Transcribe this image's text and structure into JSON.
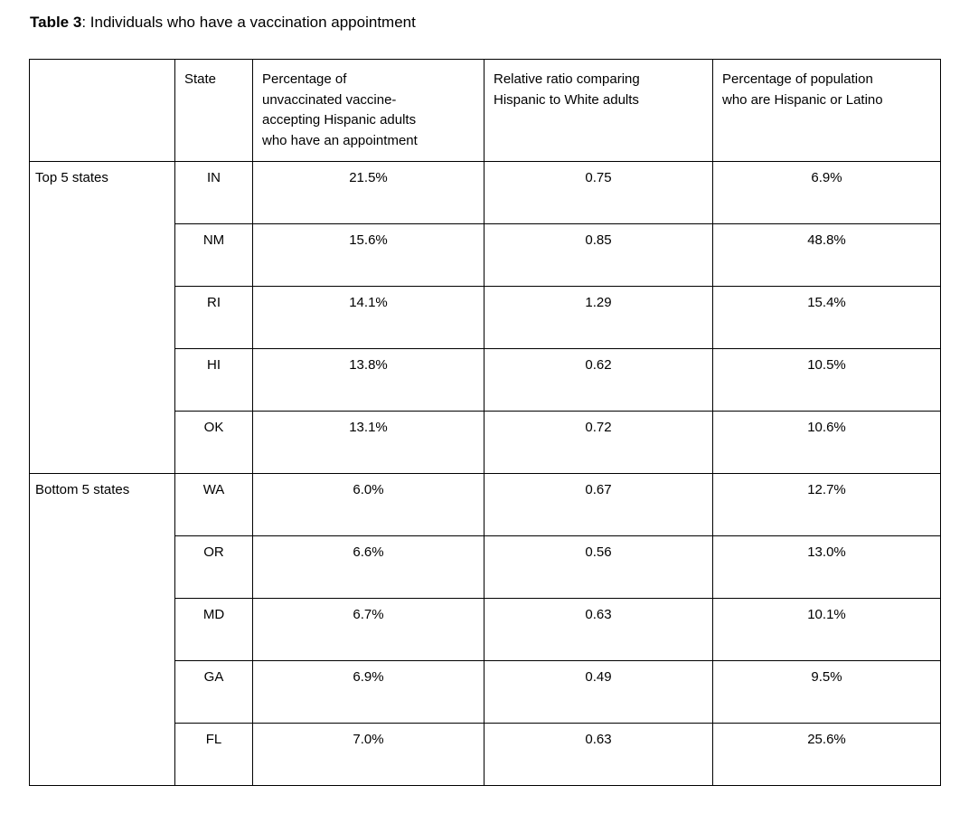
{
  "title": {
    "label": "Table 3",
    "text": ": Individuals who have a vaccination appointment"
  },
  "table": {
    "headers": [
      "",
      "State",
      "Percentage of\nunvaccinated vaccine-\naccepting Hispanic adults\nwho have an appointment",
      "Relative ratio comparing\nHispanic to White adults",
      "Percentage of population\nwho are Hispanic or Latino"
    ],
    "groups": [
      {
        "label": "Top 5 states",
        "rows": [
          {
            "state": "IN",
            "pct_appointment": "21.5%",
            "relative_ratio": "0.75",
            "pct_hispanic_latino": "6.9%"
          },
          {
            "state": "NM",
            "pct_appointment": "15.6%",
            "relative_ratio": "0.85",
            "pct_hispanic_latino": "48.8%"
          },
          {
            "state": "RI",
            "pct_appointment": "14.1%",
            "relative_ratio": "1.29",
            "pct_hispanic_latino": "15.4%"
          },
          {
            "state": "HI",
            "pct_appointment": "13.8%",
            "relative_ratio": "0.62",
            "pct_hispanic_latino": "10.5%"
          },
          {
            "state": "OK",
            "pct_appointment": "13.1%",
            "relative_ratio": "0.72",
            "pct_hispanic_latino": "10.6%"
          }
        ]
      },
      {
        "label": "Bottom 5 states",
        "rows": [
          {
            "state": "WA",
            "pct_appointment": "6.0%",
            "relative_ratio": "0.67",
            "pct_hispanic_latino": "12.7%"
          },
          {
            "state": "OR",
            "pct_appointment": "6.6%",
            "relative_ratio": "0.56",
            "pct_hispanic_latino": "13.0%"
          },
          {
            "state": "MD",
            "pct_appointment": "6.7%",
            "relative_ratio": "0.63",
            "pct_hispanic_latino": "10.1%"
          },
          {
            "state": "GA",
            "pct_appointment": "6.9%",
            "relative_ratio": "0.49",
            "pct_hispanic_latino": "9.5%"
          },
          {
            "state": "FL",
            "pct_appointment": "7.0%",
            "relative_ratio": "0.63",
            "pct_hispanic_latino": "25.6%"
          }
        ]
      }
    ]
  },
  "colors": {
    "text": "#000000",
    "border": "#000000",
    "background": "#ffffff"
  }
}
